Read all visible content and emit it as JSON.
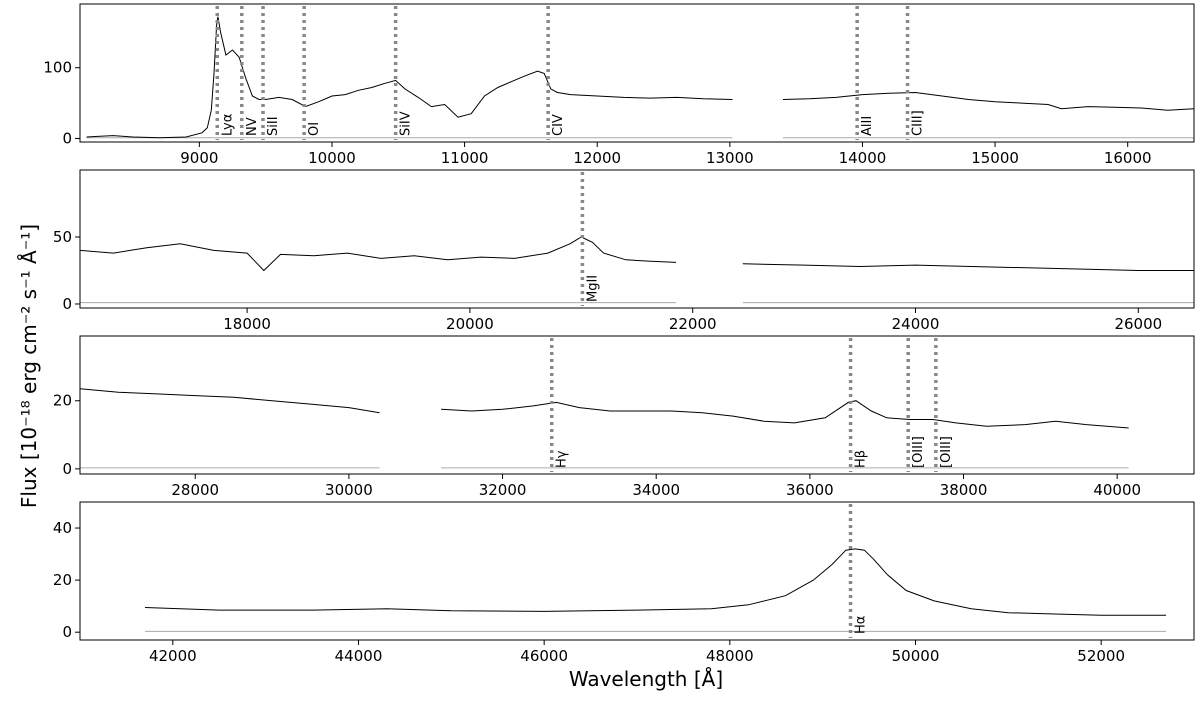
{
  "figure": {
    "xlabel": "Wavelength [Å]",
    "ylabel": "Flux [10⁻¹⁸ erg cm⁻² s⁻¹ Å⁻¹]"
  },
  "chart_data": [
    {
      "type": "line",
      "title": "",
      "xlim": [
        8100,
        16500
      ],
      "ylim": [
        -5,
        190
      ],
      "xticks": [
        9000,
        10000,
        11000,
        12000,
        13000,
        14000,
        15000,
        16000
      ],
      "yticks": [
        0,
        100
      ],
      "series": [
        {
          "x": [
            8150,
            8250,
            8350,
            8500,
            8700,
            8900,
            9020,
            9060,
            9090,
            9110,
            9130,
            9140,
            9160,
            9200,
            9250,
            9300,
            9350,
            9400,
            9450,
            9500,
            9600,
            9700,
            9800,
            9900,
            10000,
            10100,
            10200,
            10300,
            10400,
            10480,
            10550,
            10650,
            10750,
            10850,
            10950,
            11050,
            11150,
            11250,
            11350,
            11450,
            11550,
            11600,
            11650,
            11700,
            11800,
            12000,
            12200,
            12400,
            12600,
            12800,
            13020
          ],
          "y": [
            2,
            3,
            4,
            2,
            1,
            2,
            8,
            15,
            40,
            90,
            160,
            172,
            150,
            118,
            125,
            115,
            85,
            60,
            55,
            55,
            58,
            55,
            45,
            52,
            60,
            62,
            68,
            72,
            78,
            82,
            70,
            58,
            45,
            48,
            30,
            35,
            60,
            72,
            80,
            88,
            95,
            92,
            70,
            65,
            62,
            60,
            58,
            57,
            58,
            56,
            55
          ]
        },
        {
          "x": [
            13400,
            13600,
            13800,
            14000,
            14200,
            14400,
            14600,
            14800,
            15000,
            15200,
            15400,
            15500,
            15700,
            15900,
            16100,
            16300,
            16500
          ],
          "y": [
            55,
            56,
            58,
            62,
            64,
            65,
            60,
            55,
            52,
            50,
            48,
            42,
            45,
            44,
            43,
            40,
            42
          ]
        }
      ],
      "error_series": [
        {
          "x": [
            8150,
            13020
          ],
          "y": [
            1,
            1
          ]
        },
        {
          "x": [
            13400,
            16500
          ],
          "y": [
            1,
            1
          ]
        }
      ],
      "lines": [
        {
          "x": 9135,
          "label": "Lyα"
        },
        {
          "x": 9320,
          "label": "NV"
        },
        {
          "x": 9480,
          "label": "SiII"
        },
        {
          "x": 9790,
          "label": "OI"
        },
        {
          "x": 10480,
          "label": "SiIV"
        },
        {
          "x": 11630,
          "label": "CIV"
        },
        {
          "x": 13960,
          "label": "AlII"
        },
        {
          "x": 14340,
          "label": "CIII]"
        }
      ]
    },
    {
      "type": "line",
      "title": "",
      "xlim": [
        16500,
        26500
      ],
      "ylim": [
        -3,
        100
      ],
      "xticks": [
        18000,
        20000,
        22000,
        24000,
        26000
      ],
      "yticks": [
        0,
        50
      ],
      "series": [
        {
          "x": [
            16500,
            16800,
            17100,
            17400,
            17700,
            18000,
            18150,
            18300,
            18600,
            18900,
            19200,
            19500,
            19800,
            20100,
            20400,
            20700,
            20900,
            21000,
            21100,
            21200,
            21400,
            21600,
            21850
          ],
          "y": [
            40,
            38,
            42,
            45,
            40,
            38,
            25,
            37,
            36,
            38,
            34,
            36,
            33,
            35,
            34,
            38,
            45,
            50,
            46,
            38,
            33,
            32,
            31
          ]
        },
        {
          "x": [
            22450,
            23000,
            23500,
            24000,
            24500,
            25000,
            25500,
            26000,
            26500
          ],
          "y": [
            30,
            29,
            28,
            29,
            28,
            27,
            26,
            25,
            25
          ]
        }
      ],
      "error_series": [
        {
          "x": [
            16500,
            21850
          ],
          "y": [
            1,
            1
          ]
        },
        {
          "x": [
            22450,
            26500
          ],
          "y": [
            1,
            1
          ]
        }
      ],
      "lines": [
        {
          "x": 21010,
          "label": "MgII"
        }
      ]
    },
    {
      "type": "line",
      "title": "",
      "xlim": [
        26500,
        41000
      ],
      "ylim": [
        -1.5,
        39
      ],
      "xticks": [
        28000,
        30000,
        32000,
        34000,
        36000,
        38000,
        40000
      ],
      "yticks": [
        0,
        20
      ],
      "series": [
        {
          "x": [
            26500,
            27000,
            27500,
            28000,
            28500,
            29000,
            29500,
            30000,
            30400
          ],
          "y": [
            23.5,
            22.5,
            22,
            21.5,
            21,
            20,
            19,
            18,
            16.5
          ]
        },
        {
          "x": [
            31200,
            31600,
            32000,
            32400,
            32700,
            33000,
            33400,
            33800,
            34200,
            34600,
            35000,
            35400,
            35800,
            36200,
            36500,
            36600,
            36800,
            37000,
            37300,
            37600,
            37900,
            38300,
            38800,
            39200,
            39600,
            40150
          ],
          "y": [
            17.5,
            17,
            17.5,
            18.5,
            19.5,
            18,
            17,
            17,
            17,
            16.5,
            15.5,
            14,
            13.5,
            15,
            19.5,
            20,
            17,
            15,
            14.5,
            14.5,
            13.5,
            12.5,
            13,
            14,
            13,
            12
          ]
        }
      ],
      "error_series": [
        {
          "x": [
            26500,
            30400
          ],
          "y": [
            0.3,
            0.3
          ]
        },
        {
          "x": [
            31200,
            40150
          ],
          "y": [
            0.3,
            0.3
          ]
        }
      ],
      "lines": [
        {
          "x": 32640,
          "label": "Hγ"
        },
        {
          "x": 36530,
          "label": "Hβ"
        },
        {
          "x": 37280,
          "label": "[OIII]"
        },
        {
          "x": 37640,
          "label": "[OIII]"
        }
      ]
    },
    {
      "type": "line",
      "title": "",
      "xlim": [
        41000,
        53000
      ],
      "ylim": [
        -3,
        50
      ],
      "xticks": [
        42000,
        44000,
        46000,
        48000,
        50000,
        52000
      ],
      "yticks": [
        0,
        20,
        40
      ],
      "series": [
        {
          "x": [
            41700,
            42500,
            43500,
            44300,
            45000,
            46000,
            47000,
            47800,
            48200,
            48600,
            48900,
            49100,
            49250,
            49350,
            49450,
            49550,
            49700,
            49900,
            50200,
            50600,
            51000,
            51500,
            52000,
            52700
          ],
          "y": [
            9.5,
            8.5,
            8.5,
            9,
            8.2,
            8,
            8.5,
            9,
            10.5,
            14,
            20,
            26,
            31.5,
            32,
            31.5,
            28,
            22,
            16,
            12,
            9,
            7.5,
            7,
            6.5,
            6.5
          ]
        }
      ],
      "error_series": [
        {
          "x": [
            41700,
            52700
          ],
          "y": [
            0.3,
            0.3
          ]
        }
      ],
      "lines": [
        {
          "x": 49300,
          "label": "Hα"
        }
      ]
    }
  ]
}
